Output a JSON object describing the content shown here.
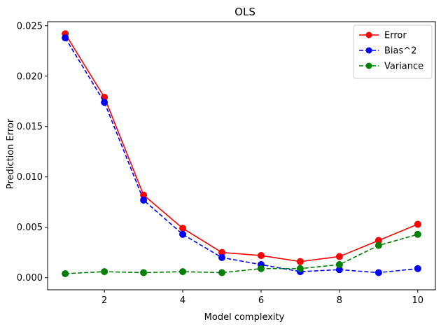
{
  "chart_data": {
    "type": "line",
    "title": "OLS",
    "xlabel": "Model complexity",
    "ylabel": "Prediction Error",
    "x": [
      1,
      2,
      3,
      4,
      5,
      6,
      7,
      8,
      9,
      10
    ],
    "xlim": [
      0.55,
      10.45
    ],
    "ylim": [
      -0.0012,
      0.0254
    ],
    "xticks": [
      2,
      4,
      6,
      8,
      10
    ],
    "yticks": [
      0.0,
      0.005,
      0.01,
      0.015,
      0.02,
      0.025
    ],
    "ytick_labels": [
      "0.000",
      "0.005",
      "0.010",
      "0.015",
      "0.020",
      "0.025"
    ],
    "grid": false,
    "legend_position": "top-right",
    "series": [
      {
        "name": "Error",
        "color": "#ff0000",
        "line_style": "solid",
        "marker": "circle",
        "values": [
          0.0242,
          0.0179,
          0.0082,
          0.0049,
          0.0025,
          0.0022,
          0.0016,
          0.0021,
          0.0037,
          0.0053
        ]
      },
      {
        "name": "Bias^2",
        "color": "#0000ff",
        "line_style": "dashed",
        "marker": "circle",
        "values": [
          0.0238,
          0.0174,
          0.0077,
          0.0043,
          0.002,
          0.0013,
          0.0006,
          0.0008,
          0.0005,
          0.0009
        ]
      },
      {
        "name": "Variance",
        "color": "#008000",
        "line_style": "dashed",
        "marker": "circle",
        "values": [
          0.0004,
          0.0006,
          0.0005,
          0.0006,
          0.0005,
          0.0009,
          0.0009,
          0.0013,
          0.0032,
          0.0043
        ]
      }
    ]
  }
}
